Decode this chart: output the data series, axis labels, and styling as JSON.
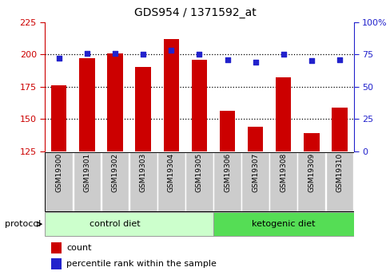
{
  "title": "GDS954 / 1371592_at",
  "samples": [
    "GSM19300",
    "GSM19301",
    "GSM19302",
    "GSM19303",
    "GSM19304",
    "GSM19305",
    "GSM19306",
    "GSM19307",
    "GSM19308",
    "GSM19309",
    "GSM19310"
  ],
  "counts": [
    176,
    197,
    201,
    190,
    212,
    196,
    156,
    144,
    182,
    139,
    159
  ],
  "percentile_ranks": [
    72,
    76,
    76,
    75,
    78,
    75,
    71,
    69,
    75,
    70,
    71
  ],
  "left_ylim": [
    125,
    225
  ],
  "right_ylim": [
    0,
    100
  ],
  "left_yticks": [
    125,
    150,
    175,
    200,
    225
  ],
  "right_yticks": [
    0,
    25,
    50,
    75,
    100
  ],
  "bar_color": "#cc0000",
  "dot_color": "#2222cc",
  "bar_width": 0.55,
  "control_bg": "#ccffcc",
  "ketogenic_bg": "#55dd55",
  "sample_bg": "#cccccc",
  "left_label_color": "#cc0000",
  "right_label_color": "#2222cc",
  "protocol_label": "protocol",
  "group_labels": [
    "control diet",
    "ketogenic diet"
  ],
  "n_control": 6,
  "legend_count_label": "count",
  "legend_percentile_label": "percentile rank within the sample",
  "dotted_lines": [
    150,
    175,
    200
  ]
}
